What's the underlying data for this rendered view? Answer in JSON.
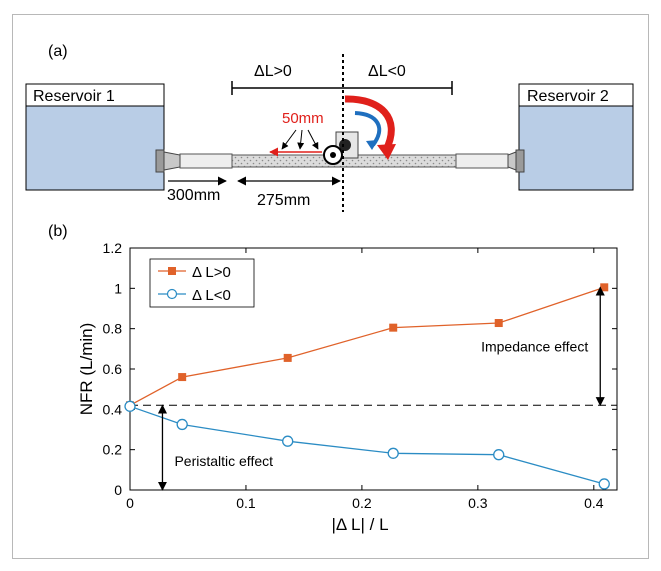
{
  "panel_a": {
    "label": "(a)",
    "reservoir_left": "Reservoir 1",
    "reservoir_right": "Reservoir 2",
    "dl_positive": "ΔL>0",
    "dl_negative": "ΔL<0",
    "step_label": "50mm",
    "dim_300": "300mm",
    "dim_275": "275mm",
    "colors": {
      "reservoir_fill": "#b9cde6",
      "arrow_red": "#e0201b",
      "arrow_blue": "#1f6fbf"
    }
  },
  "panel_b": {
    "label": "(b)"
  },
  "chart_data": {
    "type": "line",
    "xlabel": "|Δ L| / L",
    "ylabel": "NFR (L/min)",
    "xlim": [
      0,
      0.42
    ],
    "ylim": [
      0,
      1.2
    ],
    "x_ticks": [
      "0",
      "0.1",
      "0.2",
      "0.3",
      "0.4"
    ],
    "y_ticks": [
      "0",
      "0.2",
      "0.4",
      "0.6",
      "0.8",
      "1",
      "1.2"
    ],
    "legend_position": "top-left",
    "series": [
      {
        "name": "Δ L>0",
        "marker": "square",
        "color": "#e0622a",
        "x": [
          0,
          0.045,
          0.136,
          0.227,
          0.318,
          0.409
        ],
        "y": [
          0.42,
          0.56,
          0.655,
          0.805,
          0.828,
          1.005
        ]
      },
      {
        "name": "Δ L<0",
        "marker": "circle",
        "color": "#2b8cc4",
        "x": [
          0,
          0.045,
          0.136,
          0.227,
          0.318,
          0.409
        ],
        "y": [
          0.415,
          0.325,
          0.242,
          0.182,
          0.175,
          0.03
        ]
      }
    ],
    "reference_line_y": 0.42,
    "annotations": [
      {
        "text": "Impedance effect",
        "x": 0.409,
        "from": 0.42,
        "to": 1.005
      },
      {
        "text": "Peristaltic effect",
        "x": 0.028,
        "from": 0.42,
        "to": 0
      }
    ]
  }
}
